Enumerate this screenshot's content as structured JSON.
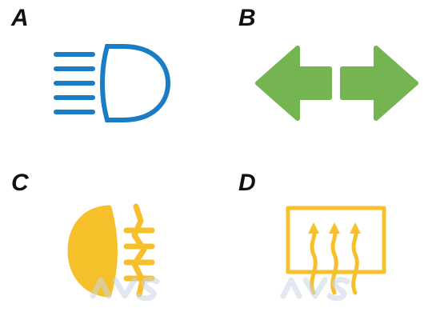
{
  "panels": [
    {
      "label": "A",
      "icon": "high-beam-headlight-icon",
      "color": "#1a7cc4"
    },
    {
      "label": "B",
      "icon": "turn-signal-arrows-icon",
      "color": "#74b552"
    },
    {
      "label": "C",
      "icon": "fog-light-icon",
      "color": "#f6c02a"
    },
    {
      "label": "D",
      "icon": "rear-defrost-icon",
      "color": "#f6c02a"
    }
  ],
  "watermark": {
    "text": "AVS",
    "color": "#c9d7e6"
  }
}
